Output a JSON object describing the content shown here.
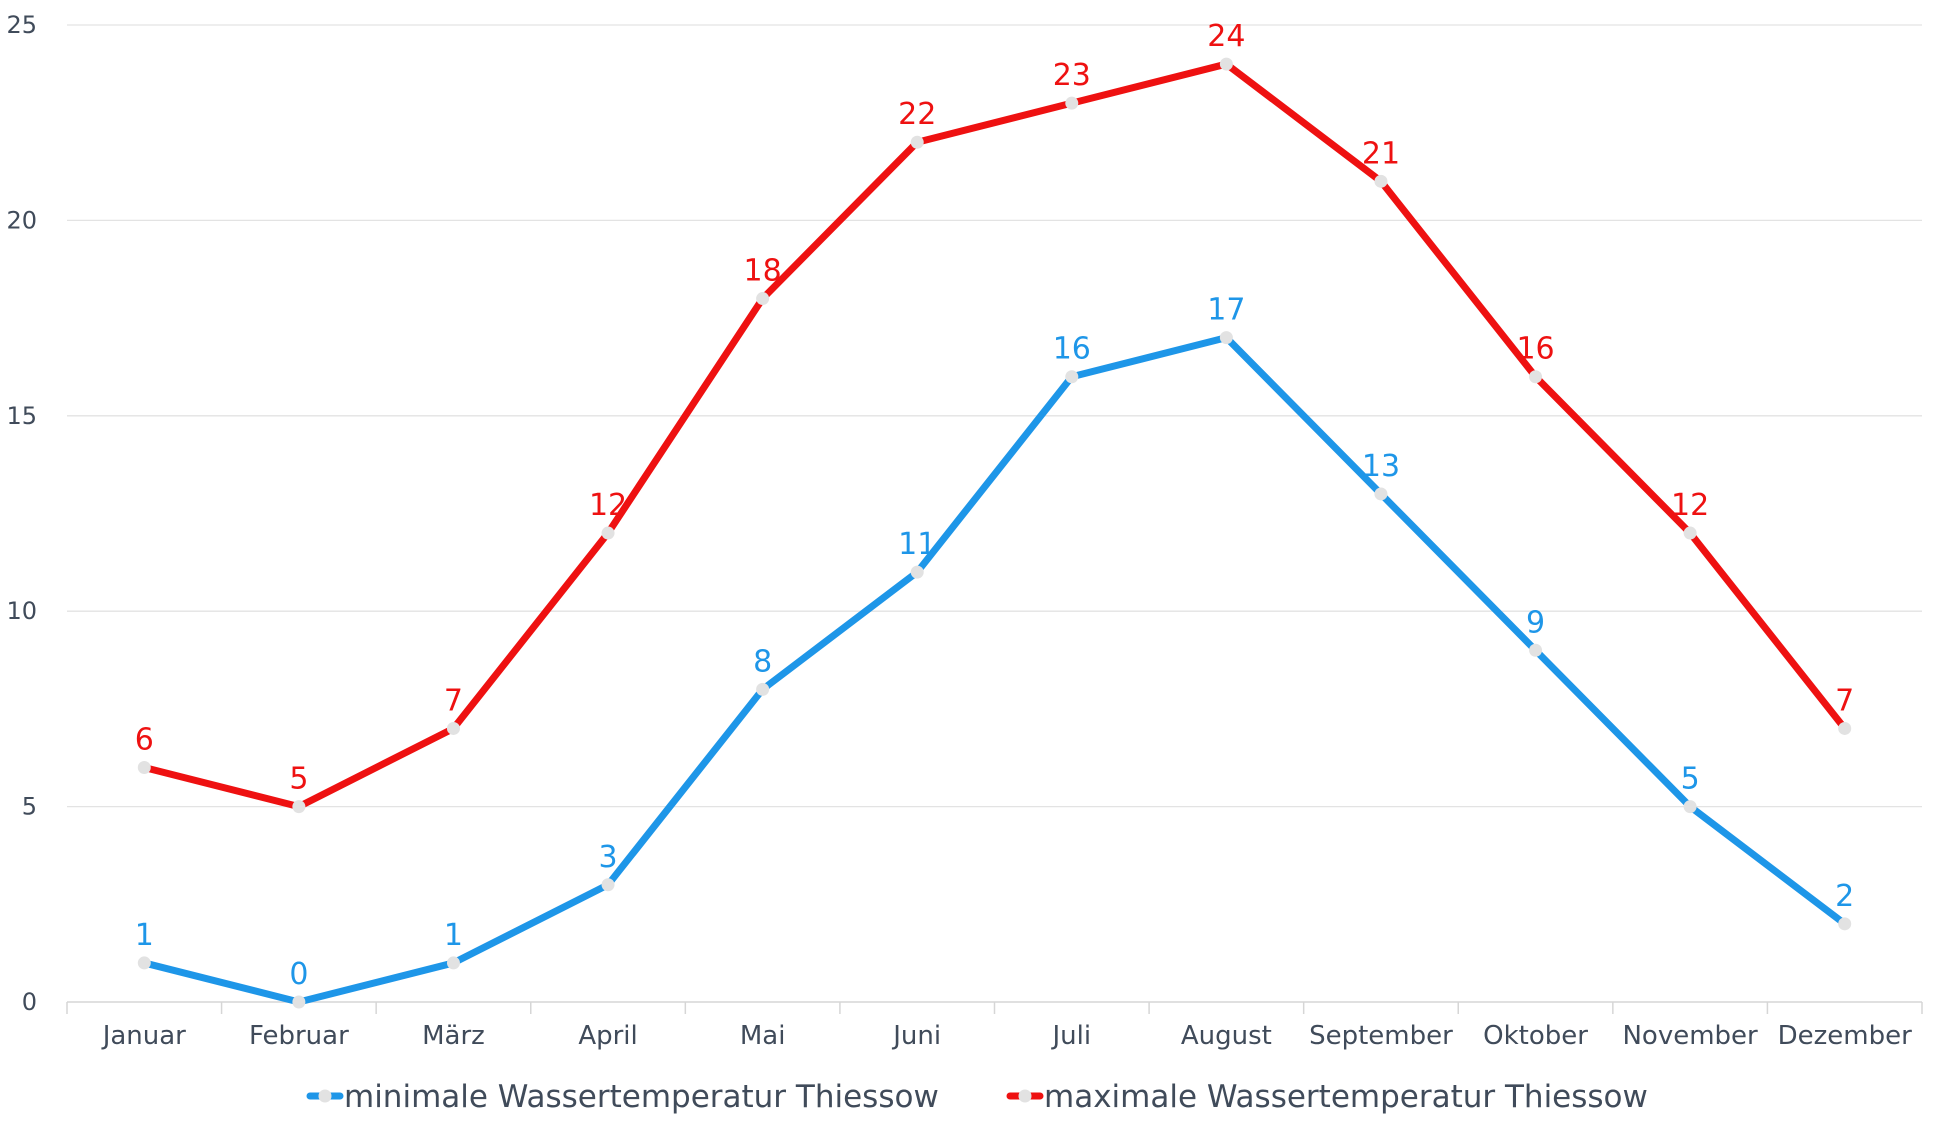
{
  "chart_data": {
    "type": "line",
    "categories": [
      "Januar",
      "Februar",
      "März",
      "April",
      "Mai",
      "Juni",
      "Juli",
      "August",
      "September",
      "Oktober",
      "November",
      "Dezember"
    ],
    "series": [
      {
        "name": "minimale Wassertemperatur Thiessow",
        "color": "#1e96e8",
        "values": [
          1,
          0,
          1,
          3,
          8,
          11,
          16,
          17,
          13,
          9,
          5,
          2
        ]
      },
      {
        "name": "maximale Wassertemperatur Thiessow",
        "color": "#ee1111",
        "values": [
          6,
          5,
          7,
          12,
          18,
          22,
          23,
          24,
          21,
          16,
          12,
          7
        ]
      }
    ],
    "ylim": [
      0,
      25
    ],
    "yticks": [
      0,
      5,
      10,
      15,
      20,
      25
    ],
    "grid": true,
    "legend_position": "bottom",
    "data_labels": true,
    "marker_color": "#e2e2e2",
    "axis_text_color": "#404b5a"
  }
}
